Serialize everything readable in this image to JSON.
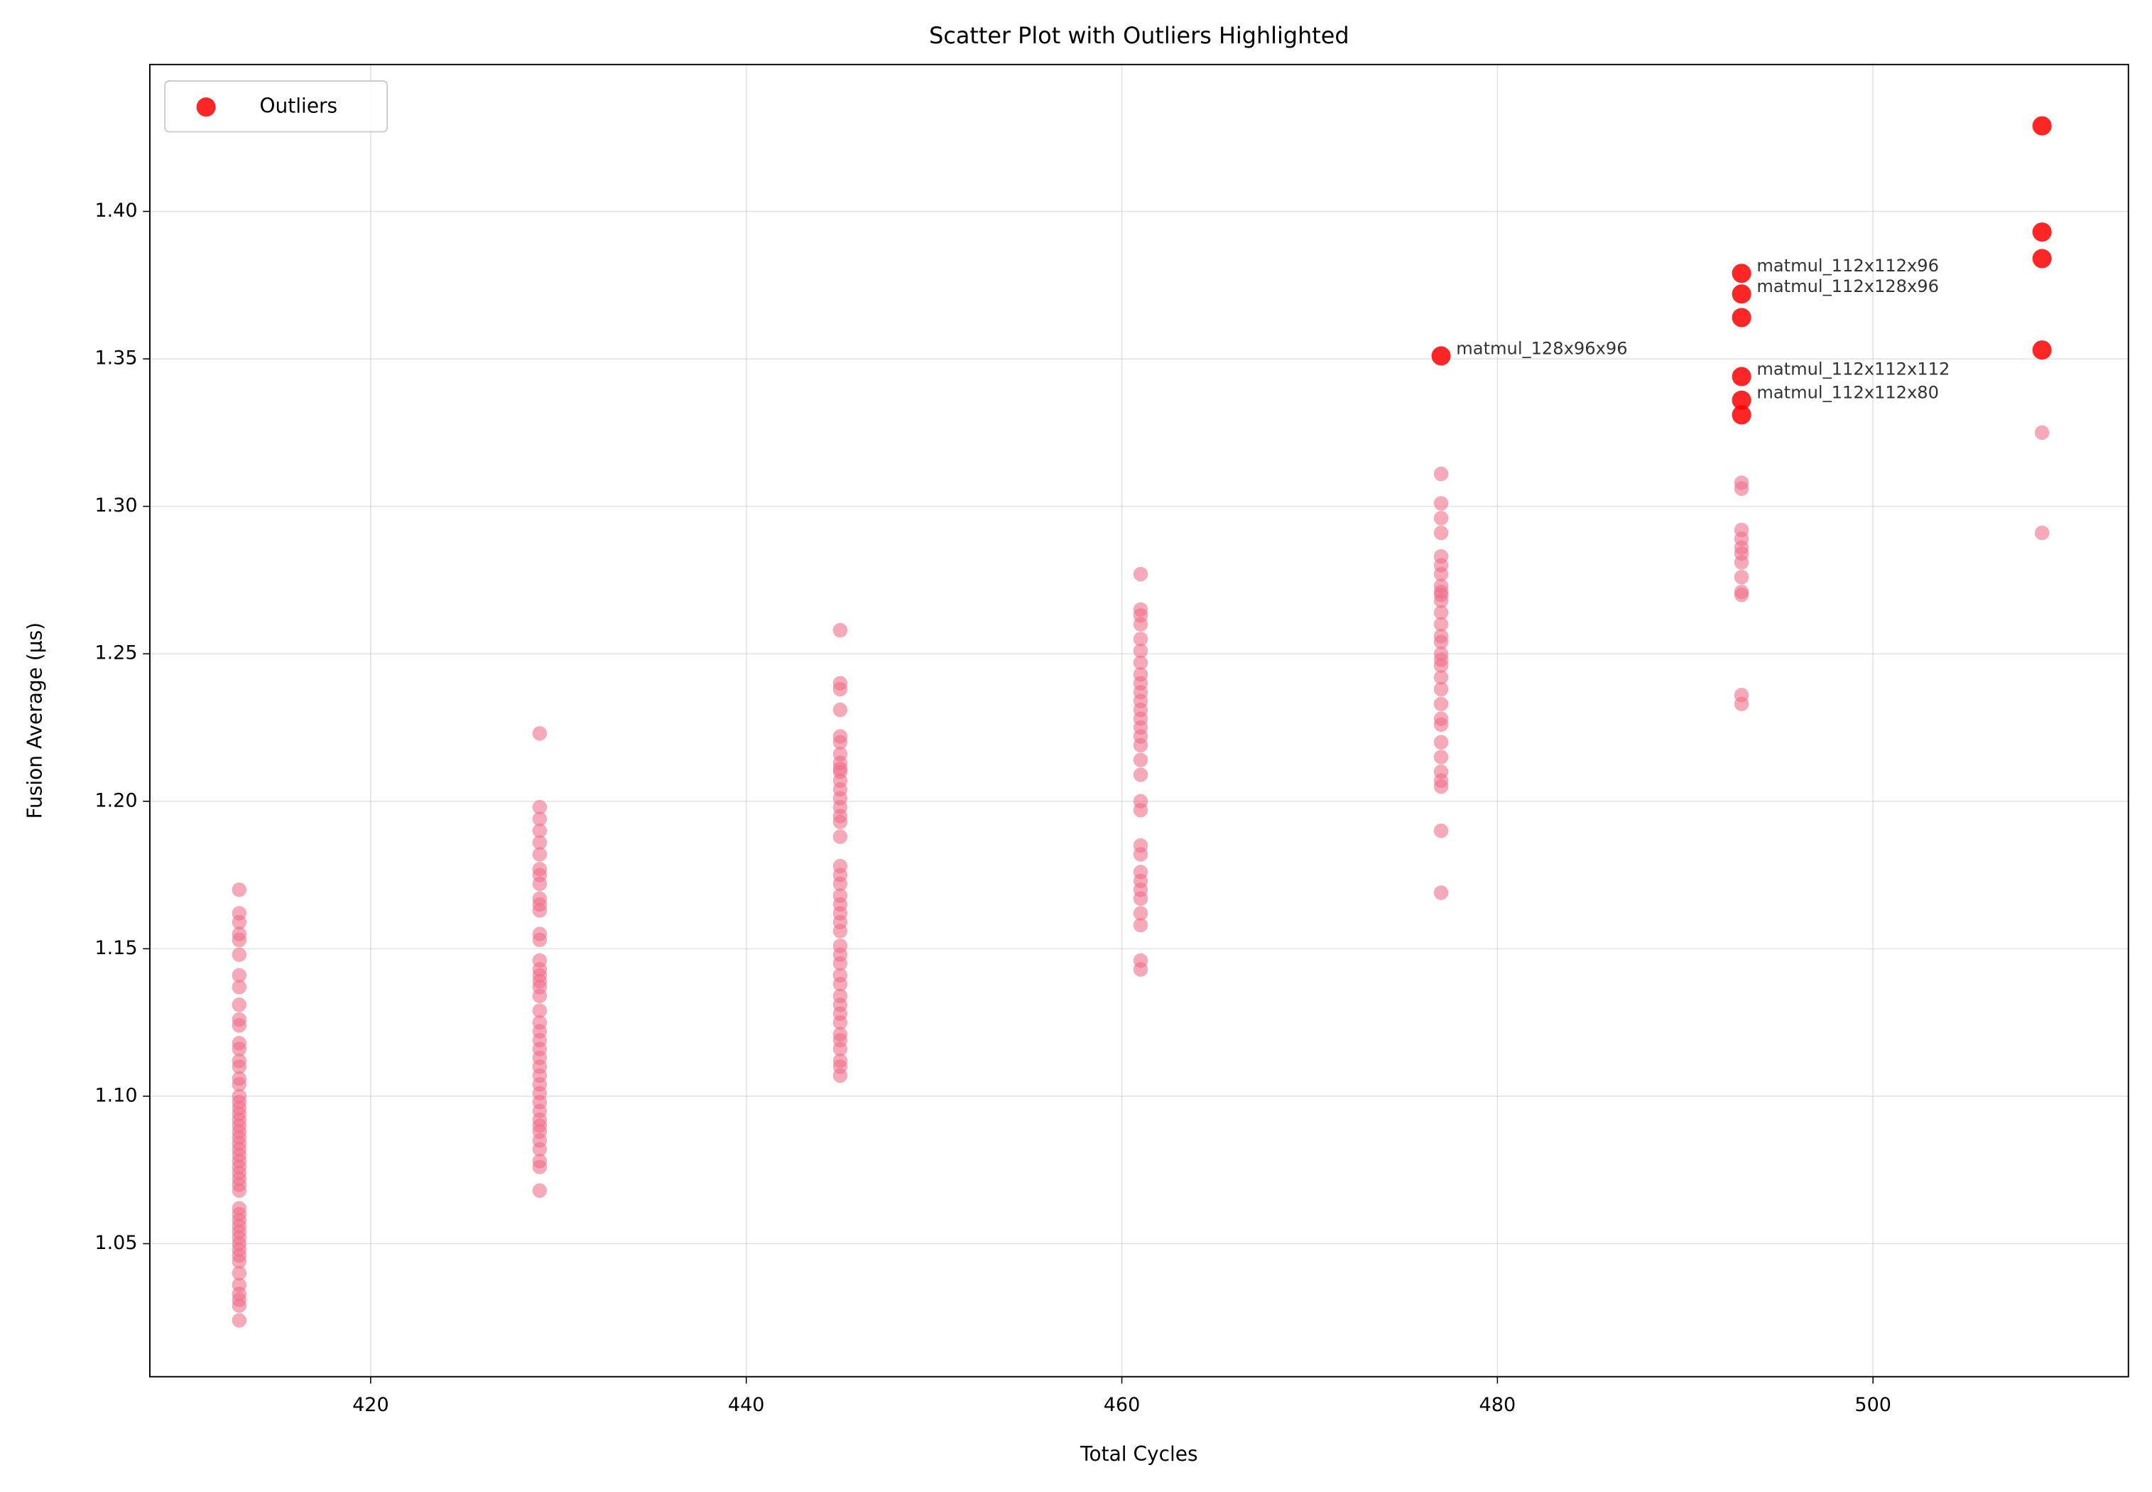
{
  "chart_data": {
    "type": "scatter",
    "title": "Scatter Plot with Outliers Highlighted",
    "x_label": "Total Cycles",
    "y_label": "Fusion Average (µs)",
    "xlim": [
      408.24,
      513.6
    ],
    "ylim": [
      1.0049,
      1.4498
    ],
    "xticks": [
      420,
      440,
      460,
      480,
      500
    ],
    "yticks": [
      1.05,
      {
        "value": 1.1,
        "label": "1.10"
      },
      1.15,
      {
        "value": 1.2,
        "label": "1.20"
      },
      1.25,
      {
        "value": 1.3,
        "label": "1.30"
      },
      1.35,
      {
        "value": 1.4,
        "label": "1.40"
      }
    ],
    "grid": true,
    "legend": "upper left",
    "series": [
      {
        "color": "#f0708a",
        "x": [
          413,
          413,
          413,
          413,
          413,
          413,
          413,
          413,
          413,
          413,
          413,
          413,
          413,
          413,
          413,
          413,
          413,
          413,
          413,
          413,
          413,
          413,
          413,
          413,
          413,
          413,
          413,
          413,
          413,
          413,
          413,
          413,
          413,
          413,
          413,
          413,
          413,
          413,
          413,
          413,
          413,
          413,
          413,
          413,
          413,
          413,
          413,
          413,
          413,
          413,
          429,
          429,
          429,
          429,
          429,
          429,
          429,
          429,
          429,
          429,
          429,
          429,
          429,
          429,
          429,
          429,
          429,
          429,
          429,
          429,
          429,
          429,
          429,
          429,
          429,
          429,
          429,
          429,
          429,
          429,
          429,
          429,
          429,
          429,
          429,
          429,
          429,
          429,
          429,
          429,
          445,
          445,
          445,
          445,
          445,
          445,
          445,
          445,
          445,
          445,
          445,
          445,
          445,
          445,
          445,
          445,
          445,
          445,
          445,
          445,
          445,
          445,
          445,
          445,
          445,
          445,
          445,
          445,
          445,
          445,
          445,
          445,
          445,
          445,
          445,
          445,
          445,
          445,
          445,
          445,
          461,
          461,
          461,
          461,
          461,
          461,
          461,
          461,
          461,
          461,
          461,
          461,
          461,
          461,
          461,
          461,
          461,
          461,
          461,
          461,
          461,
          461,
          461,
          461,
          461,
          461,
          461,
          461,
          461,
          461,
          477,
          477,
          477,
          477,
          477,
          477,
          477,
          477,
          477,
          477,
          477,
          477,
          477,
          477,
          477,
          477,
          477,
          477,
          477,
          477,
          477,
          477,
          477,
          477,
          477,
          477,
          477,
          477,
          477,
          477,
          493,
          493,
          493,
          493,
          493,
          493,
          493,
          493,
          493,
          493,
          493,
          493,
          509,
          509
        ],
        "values": [
          1.17,
          1.162,
          1.159,
          1.155,
          1.153,
          1.148,
          1.141,
          1.137,
          1.131,
          1.126,
          1.124,
          1.118,
          1.116,
          1.112,
          1.11,
          1.106,
          1.104,
          1.1,
          1.098,
          1.096,
          1.094,
          1.092,
          1.09,
          1.088,
          1.086,
          1.084,
          1.082,
          1.08,
          1.078,
          1.076,
          1.074,
          1.072,
          1.07,
          1.068,
          1.062,
          1.06,
          1.058,
          1.056,
          1.054,
          1.052,
          1.05,
          1.048,
          1.046,
          1.044,
          1.04,
          1.036,
          1.033,
          1.031,
          1.029,
          1.024,
          1.223,
          1.198,
          1.194,
          1.19,
          1.186,
          1.182,
          1.177,
          1.175,
          1.172,
          1.167,
          1.165,
          1.163,
          1.155,
          1.153,
          1.146,
          1.143,
          1.141,
          1.139,
          1.137,
          1.134,
          1.129,
          1.125,
          1.122,
          1.119,
          1.116,
          1.113,
          1.11,
          1.107,
          1.104,
          1.101,
          1.098,
          1.095,
          1.092,
          1.09,
          1.088,
          1.085,
          1.082,
          1.078,
          1.076,
          1.068,
          1.258,
          1.24,
          1.238,
          1.231,
          1.222,
          1.22,
          1.216,
          1.213,
          1.21,
          1.207,
          1.204,
          1.201,
          1.198,
          1.195,
          1.188,
          1.178,
          1.175,
          1.172,
          1.168,
          1.165,
          1.159,
          1.156,
          1.151,
          1.148,
          1.145,
          1.141,
          1.138,
          1.134,
          1.131,
          1.128,
          1.125,
          1.121,
          1.119,
          1.116,
          1.112,
          1.11,
          1.107,
          1.193,
          1.211,
          1.162,
          1.277,
          1.265,
          1.263,
          1.26,
          1.255,
          1.251,
          1.247,
          1.243,
          1.24,
          1.237,
          1.234,
          1.231,
          1.228,
          1.225,
          1.222,
          1.219,
          1.209,
          1.2,
          1.197,
          1.185,
          1.182,
          1.176,
          1.173,
          1.17,
          1.167,
          1.162,
          1.158,
          1.146,
          1.143,
          1.214,
          1.311,
          1.301,
          1.296,
          1.291,
          1.283,
          1.28,
          1.277,
          1.273,
          1.271,
          1.268,
          1.264,
          1.256,
          1.254,
          1.25,
          1.246,
          1.242,
          1.238,
          1.228,
          1.226,
          1.22,
          1.21,
          1.207,
          1.205,
          1.19,
          1.169,
          1.26,
          1.27,
          1.215,
          1.233,
          1.248,
          1.308,
          1.306,
          1.292,
          1.289,
          1.286,
          1.284,
          1.281,
          1.276,
          1.271,
          1.27,
          1.236,
          1.233,
          1.325,
          1.291
        ]
      },
      {
        "name": "Outliers",
        "color": "#ff0000",
        "x": [
          477,
          493,
          493,
          493,
          493,
          493,
          493,
          509,
          509,
          509,
          509
        ],
        "values": [
          1.351,
          1.379,
          1.372,
          1.364,
          1.344,
          1.336,
          1.331,
          1.429,
          1.393,
          1.384,
          1.353
        ],
        "labels": [
          "matmul_128x96x96",
          "matmul_112x112x96",
          "matmul_112x128x96",
          null,
          "matmul_112x112x112",
          "matmul_112x112x80",
          null,
          null,
          null,
          null,
          null
        ]
      }
    ]
  }
}
